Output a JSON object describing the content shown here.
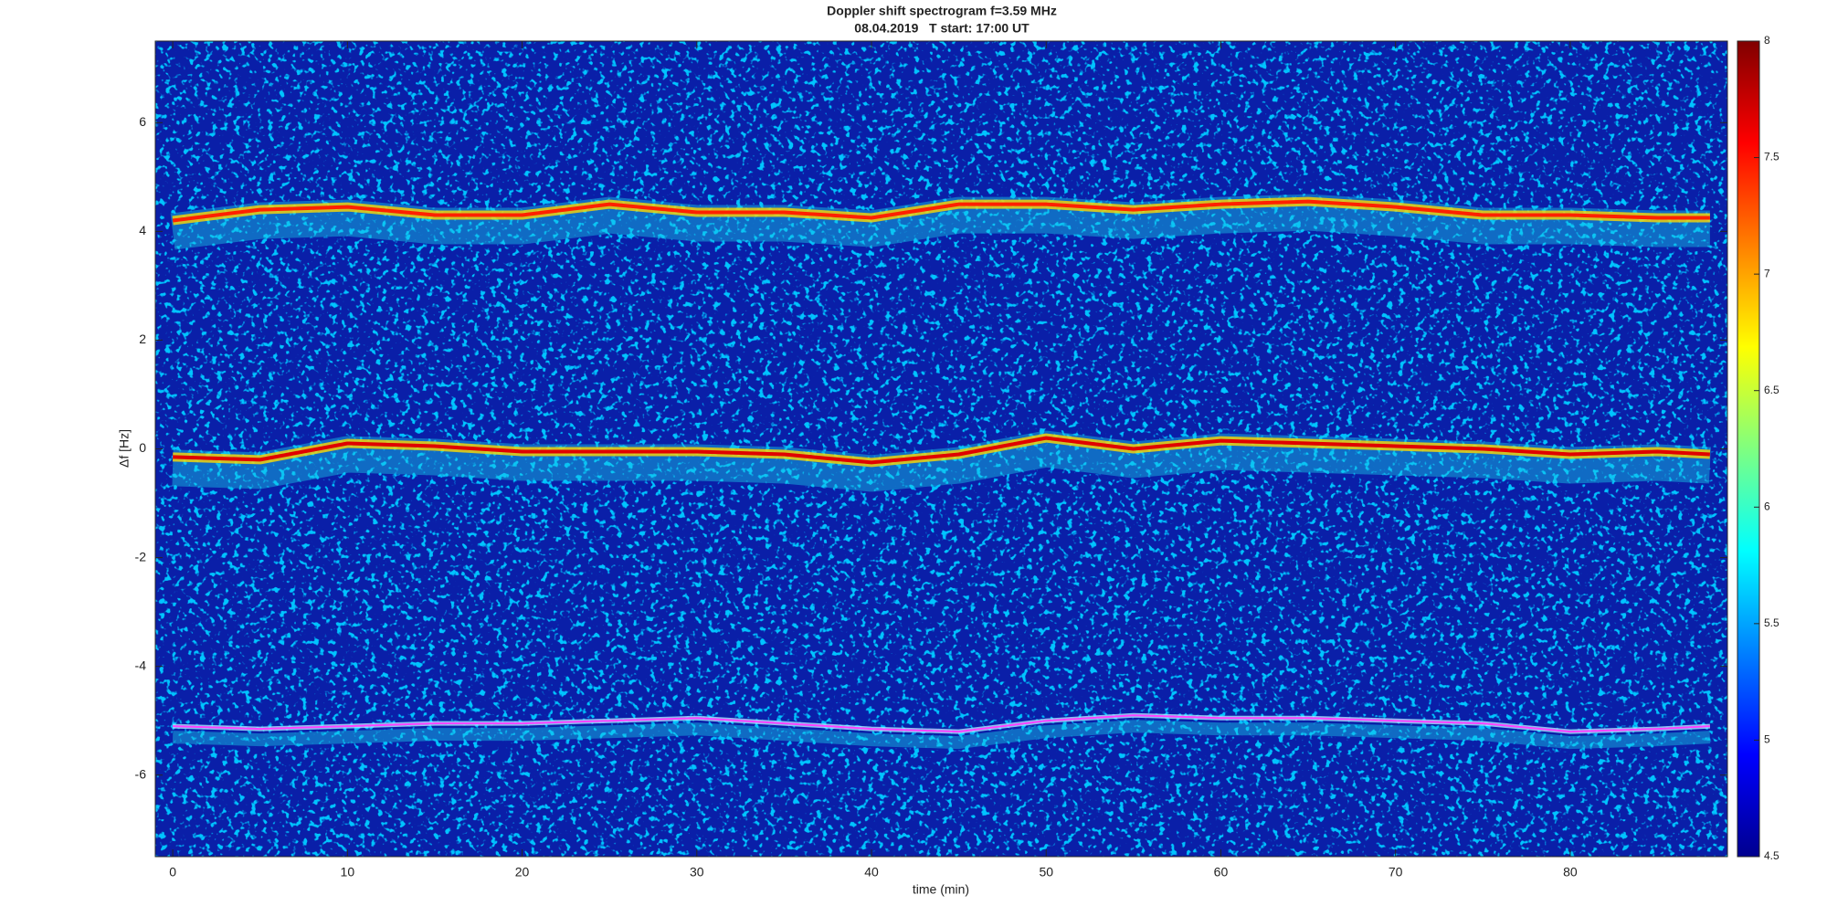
{
  "chart_data": {
    "type": "spectrogram",
    "title": "Doppler shift spectrogram f=3.59 MHz",
    "subtitle": "08.04.2019   T start: 17:00 UT",
    "x_label": "time (min)",
    "y_label": "Δf [Hz]",
    "x": [
      0,
      5,
      10,
      15,
      20,
      25,
      30,
      35,
      40,
      45,
      50,
      55,
      60,
      65,
      70,
      75,
      80,
      85,
      88
    ],
    "series": [
      {
        "color": "#ff2000",
        "values": [
          4.2,
          4.4,
          4.45,
          4.3,
          4.3,
          4.5,
          4.35,
          4.35,
          4.25,
          4.5,
          4.5,
          4.4,
          4.5,
          4.55,
          4.45,
          4.3,
          4.3,
          4.25,
          4.25
        ]
      },
      {
        "color": "#e00000",
        "values": [
          -0.15,
          -0.2,
          0.1,
          0.05,
          -0.05,
          -0.05,
          -0.05,
          -0.1,
          -0.25,
          -0.1,
          0.2,
          0.0,
          0.15,
          0.1,
          0.05,
          0.0,
          -0.1,
          -0.05,
          -0.1
        ]
      },
      {
        "color": "#ff40ff",
        "values": [
          -5.1,
          -5.15,
          -5.1,
          -5.05,
          -5.05,
          -5.0,
          -4.95,
          -5.05,
          -5.15,
          -5.2,
          -5.0,
          -4.9,
          -4.95,
          -4.95,
          -5.0,
          -5.05,
          -5.2,
          -5.15,
          -5.1
        ]
      }
    ],
    "xlim": [
      -1,
      89
    ],
    "xticks": [
      0,
      10,
      20,
      30,
      40,
      50,
      60,
      70,
      80
    ],
    "ylim": [
      -7.5,
      7.5
    ],
    "yticks": [
      -6,
      -4,
      -2,
      0,
      2,
      4,
      6
    ],
    "colorbar": {
      "lim": [
        4.5,
        8
      ],
      "ticks": [
        4.5,
        5,
        5.5,
        6,
        6.5,
        7,
        7.5,
        8
      ]
    }
  }
}
